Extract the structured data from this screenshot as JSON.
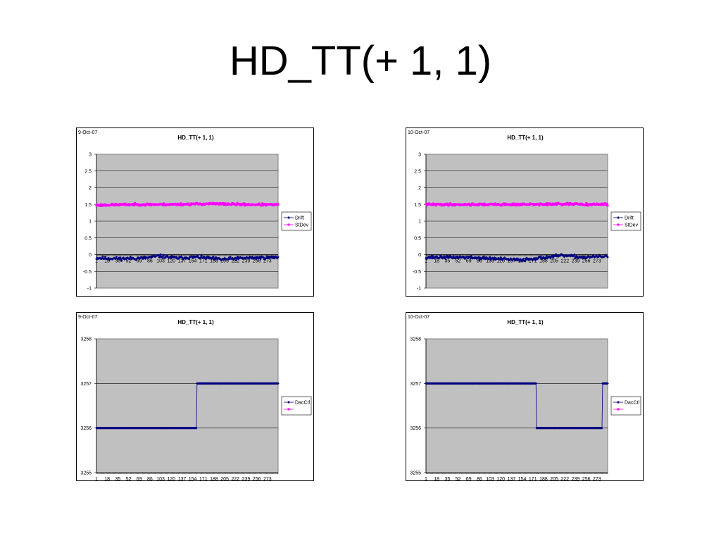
{
  "slide_title": "HD_TT(+ 1, 1)",
  "colors": {
    "drift": "#000080",
    "stdev": "#FF00FF",
    "plot_bg": "#C0C0C0",
    "grid": "#000000"
  },
  "chart_data": [
    {
      "id": "chart-drift-oct9",
      "type": "line",
      "date_label": "9-Oct-07",
      "title": "HD_TT(+ 1, 1)",
      "xlabel": "",
      "ylabel": "",
      "x_range": [
        1,
        290
      ],
      "x_ticks": [
        1,
        18,
        35,
        52,
        69,
        86,
        103,
        120,
        137,
        154,
        171,
        188,
        205,
        222,
        239,
        256,
        273
      ],
      "x_tick_labels": [
        "1",
        "18",
        "35",
        "52",
        "69",
        "86",
        "103",
        "120",
        "137",
        "154",
        "171",
        "188",
        "205",
        "222",
        "239",
        "256",
        "273"
      ],
      "ylim": [
        -1,
        3
      ],
      "y_ticks": [
        -1,
        -0.5,
        0,
        0.5,
        1,
        1.5,
        2,
        2.5,
        3
      ],
      "y_tick_labels": [
        "-1",
        "-0.5",
        "0",
        "0.5",
        "1",
        "1.5",
        "2",
        "2.5",
        "3"
      ],
      "x_axis_at": 0,
      "grid": true,
      "legend_position": "right",
      "series": [
        {
          "name": "Drift",
          "color": "#000080",
          "marker": "diamond",
          "segments": [
            [
              1,
              -0.1
            ],
            [
              40,
              -0.12
            ],
            [
              80,
              -0.1
            ],
            [
              100,
              -0.04
            ],
            [
              130,
              -0.1
            ],
            [
              160,
              -0.07
            ],
            [
              200,
              -0.14
            ],
            [
              240,
              -0.1
            ],
            [
              290,
              -0.08
            ]
          ],
          "noise": 0.04,
          "seed": 11
        },
        {
          "name": "StDev",
          "color": "#FF00FF",
          "marker": "square",
          "segments": [
            [
              1,
              1.48
            ],
            [
              60,
              1.5
            ],
            [
              120,
              1.5
            ],
            [
              180,
              1.52
            ],
            [
              240,
              1.5
            ],
            [
              290,
              1.49
            ]
          ],
          "noise": 0.025,
          "seed": 23
        }
      ]
    },
    {
      "id": "chart-drift-oct10",
      "type": "line",
      "date_label": "10-Oct-07",
      "title": "HD_TT(+ 1, 1)",
      "xlabel": "",
      "ylabel": "",
      "x_range": [
        1,
        290
      ],
      "x_ticks": [
        1,
        18,
        35,
        52,
        69,
        86,
        103,
        120,
        137,
        154,
        171,
        188,
        205,
        222,
        239,
        256,
        273
      ],
      "x_tick_labels": [
        "1",
        "18",
        "35",
        "52",
        "69",
        "86",
        "103",
        "120",
        "137",
        "154",
        "171",
        "188",
        "205",
        "222",
        "239",
        "256",
        "273"
      ],
      "ylim": [
        -1,
        3
      ],
      "y_ticks": [
        -1,
        -0.5,
        0,
        0.5,
        1,
        1.5,
        2,
        2.5,
        3
      ],
      "y_tick_labels": [
        "-1",
        "-0.5",
        "0",
        "0.5",
        "1",
        "1.5",
        "2",
        "2.5",
        "3"
      ],
      "x_axis_at": 0,
      "grid": true,
      "legend_position": "right",
      "series": [
        {
          "name": "Drift",
          "color": "#000080",
          "marker": "diamond",
          "segments": [
            [
              1,
              -0.08
            ],
            [
              60,
              -0.08
            ],
            [
              110,
              -0.12
            ],
            [
              150,
              -0.16
            ],
            [
              180,
              -0.1
            ],
            [
              220,
              -0.03
            ],
            [
              250,
              -0.08
            ],
            [
              290,
              -0.05
            ]
          ],
          "noise": 0.04,
          "seed": 37
        },
        {
          "name": "StDev",
          "color": "#FF00FF",
          "marker": "square",
          "segments": [
            [
              1,
              1.5
            ],
            [
              80,
              1.5
            ],
            [
              150,
              1.5
            ],
            [
              220,
              1.51
            ],
            [
              290,
              1.5
            ]
          ],
          "noise": 0.025,
          "seed": 41
        }
      ]
    },
    {
      "id": "chart-dacctl-oct9",
      "type": "line",
      "date_label": "9-Oct-07",
      "title": "HD_TT(+ 1, 1)",
      "xlabel": "",
      "ylabel": "",
      "x_range": [
        1,
        290
      ],
      "x_ticks": [
        1,
        18,
        35,
        52,
        69,
        86,
        103,
        120,
        137,
        154,
        171,
        188,
        205,
        222,
        239,
        256,
        273
      ],
      "x_tick_labels": [
        "1",
        "18",
        "35",
        "52",
        "69",
        "86",
        "103",
        "120",
        "137",
        "154",
        "171",
        "188",
        "205",
        "222",
        "239",
        "256",
        "273"
      ],
      "ylim": [
        3255,
        3258
      ],
      "y_ticks": [
        3255,
        3256,
        3257,
        3258
      ],
      "y_tick_labels": [
        "3255",
        "3256",
        "3257",
        "3258"
      ],
      "x_axis_at": 3255,
      "grid": true,
      "legend_position": "right",
      "series": [
        {
          "name": "DacCtl",
          "color": "#000080",
          "marker": "diamond",
          "steps": [
            [
              1,
              3256
            ],
            [
              160,
              3256
            ],
            [
              161,
              3257
            ],
            [
              290,
              3257
            ]
          ]
        },
        {
          "name": "",
          "color": "#FF00FF",
          "marker": "square",
          "steps": []
        }
      ]
    },
    {
      "id": "chart-dacctl-oct10",
      "type": "line",
      "date_label": "10-Oct-07",
      "title": "HD_TT(+ 1, 1)",
      "xlabel": "",
      "ylabel": "",
      "x_range": [
        1,
        290
      ],
      "x_ticks": [
        1,
        18,
        35,
        52,
        69,
        86,
        103,
        120,
        137,
        154,
        171,
        188,
        205,
        222,
        239,
        256,
        273
      ],
      "x_tick_labels": [
        "1",
        "18",
        "35",
        "52",
        "69",
        "86",
        "103",
        "120",
        "137",
        "154",
        "171",
        "188",
        "205",
        "222",
        "239",
        "256",
        "273"
      ],
      "ylim": [
        3255,
        3258
      ],
      "y_ticks": [
        3255,
        3256,
        3257,
        3258
      ],
      "y_tick_labels": [
        "3255",
        "3256",
        "3257",
        "3258"
      ],
      "x_axis_at": 3255,
      "grid": true,
      "legend_position": "right",
      "series": [
        {
          "name": "DacCtl",
          "color": "#000080",
          "marker": "diamond",
          "steps": [
            [
              1,
              3257
            ],
            [
              176,
              3257
            ],
            [
              177,
              3256
            ],
            [
              281,
              3256
            ],
            [
              282,
              3257
            ],
            [
              290,
              3257
            ]
          ]
        },
        {
          "name": "",
          "color": "#FF00FF",
          "marker": "square",
          "steps": []
        }
      ]
    }
  ]
}
